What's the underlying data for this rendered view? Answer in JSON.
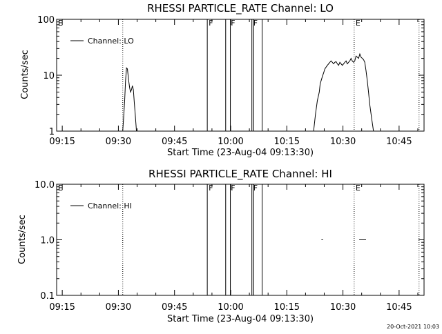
{
  "footer_date": "20-Oct-2021 10:03",
  "chart_data": [
    {
      "type": "line",
      "title": "RHESSI PARTICLE_RATE Channel: LO",
      "xlabel": "Start Time (23-Aug-04 09:13:30)",
      "ylabel": "Counts/sec",
      "yscale": "log",
      "ylim": [
        1,
        100
      ],
      "yticks": [
        1,
        10,
        100
      ],
      "ytick_labels": [
        "1",
        "10",
        "100"
      ],
      "xlim": [
        "09:13:30",
        "10:51:40"
      ],
      "xticks": [
        "09:15",
        "09:30",
        "09:45",
        "10:00",
        "10:15",
        "10:30",
        "10:45"
      ],
      "legend": {
        "label": "Channel: LO",
        "position": "top-left"
      },
      "flags": [
        {
          "label": "E",
          "time": "09:13:30"
        },
        {
          "label": "F",
          "time": "09:53:45"
        },
        {
          "label": "F",
          "time": "09:59:40"
        },
        {
          "label": "F",
          "time": "10:05:40"
        },
        {
          "label": "E",
          "time": "10:33:00"
        }
      ],
      "dotted_lines": [
        "09:31:10",
        "10:33:00",
        "10:50:20"
      ],
      "solid_lines": [
        "09:53:45",
        "09:58:40",
        "09:59:55",
        "10:05:40",
        "10:06:10",
        "10:08:25"
      ],
      "series": [
        {
          "x": [
            "09:31:10",
            "09:31:25",
            "09:31:40",
            "09:31:55",
            "09:32:10",
            "09:32:25",
            "09:32:45",
            "09:33:00",
            "09:33:15",
            "09:33:30",
            "09:33:45",
            "09:34:00",
            "09:34:15",
            "09:34:30",
            "09:34:50"
          ],
          "y": [
            1.0,
            1.8,
            3.5,
            8.0,
            13.5,
            13.0,
            8.0,
            6.0,
            5.0,
            5.5,
            6.5,
            5.5,
            3.2,
            2.0,
            1.0
          ]
        },
        {
          "x": [
            "10:22:10",
            "10:22:40",
            "10:23:10",
            "10:23:40",
            "10:23:55",
            "10:24:10",
            "10:24:30",
            "10:24:50",
            "10:25:10",
            "10:25:30",
            "10:25:50",
            "10:26:10",
            "10:26:30",
            "10:26:50",
            "10:27:10",
            "10:27:30",
            "10:27:50",
            "10:28:10",
            "10:28:30",
            "10:28:50",
            "10:29:10",
            "10:29:30",
            "10:29:50",
            "10:30:10",
            "10:30:30",
            "10:30:50",
            "10:31:10",
            "10:31:30",
            "10:31:50",
            "10:32:10",
            "10:32:30",
            "10:32:50",
            "10:33:10",
            "10:33:30",
            "10:33:50",
            "10:34:10",
            "10:34:30",
            "10:34:50",
            "10:35:10",
            "10:35:30",
            "10:35:50",
            "10:36:10",
            "10:36:30",
            "10:36:50",
            "10:37:10",
            "10:37:40",
            "10:38:10"
          ],
          "y": [
            1.0,
            2.0,
            3.5,
            5.0,
            7.0,
            8.0,
            9.5,
            11.0,
            13.0,
            14.0,
            15.0,
            16.0,
            17.0,
            18.0,
            17.0,
            16.0,
            17.0,
            17.5,
            16.0,
            15.0,
            17.0,
            16.0,
            15.0,
            16.0,
            17.0,
            18.0,
            16.0,
            17.0,
            18.0,
            20.0,
            18.0,
            17.0,
            18.0,
            22.0,
            21.0,
            20.0,
            24.0,
            21.0,
            20.0,
            19.0,
            17.0,
            12.0,
            8.0,
            5.0,
            3.0,
            1.7,
            1.0
          ]
        }
      ]
    },
    {
      "type": "line",
      "title": "RHESSI PARTICLE_RATE Channel: HI",
      "xlabel": "Start Time (23-Aug-04 09:13:30)",
      "ylabel": "Counts/sec",
      "yscale": "log",
      "ylim": [
        0.1,
        10
      ],
      "yticks": [
        0.1,
        1,
        10
      ],
      "ytick_labels": [
        "0.1",
        "1.0",
        "10.0"
      ],
      "xlim": [
        "09:13:30",
        "10:51:40"
      ],
      "xticks": [
        "09:15",
        "09:30",
        "09:45",
        "10:00",
        "10:15",
        "10:30",
        "10:45"
      ],
      "legend": {
        "label": "Channel: HI",
        "position": "top-left"
      },
      "flags": [
        {
          "label": "E",
          "time": "09:13:30"
        },
        {
          "label": "F",
          "time": "09:53:45"
        },
        {
          "label": "F",
          "time": "09:59:40"
        },
        {
          "label": "F",
          "time": "10:05:40"
        },
        {
          "label": "E",
          "time": "10:33:00"
        }
      ],
      "dotted_lines": [
        "09:31:10",
        "10:33:00",
        "10:50:20"
      ],
      "solid_lines": [
        "09:53:45",
        "09:58:40",
        "09:59:55",
        "10:05:40",
        "10:06:10",
        "10:08:25"
      ],
      "series": [
        {
          "x": [
            "10:24:15",
            "10:24:40"
          ],
          "y": [
            1.0,
            1.0
          ]
        },
        {
          "x": [
            "10:34:20",
            "10:36:10"
          ],
          "y": [
            1.0,
            1.0
          ]
        }
      ]
    }
  ]
}
